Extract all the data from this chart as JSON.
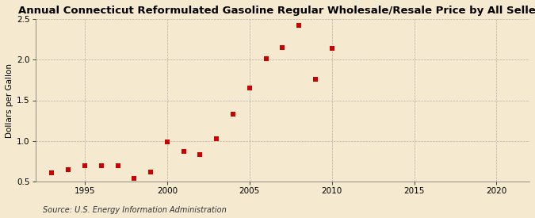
{
  "title": "Annual Connecticut Reformulated Gasoline Regular Wholesale/Resale Price by All Sellers",
  "ylabel": "Dollars per Gallon",
  "source_text": "Source: U.S. Energy Information Administration",
  "background_color": "#f5ead0",
  "data_points": [
    [
      1993,
      0.61
    ],
    [
      1994,
      0.65
    ],
    [
      1995,
      0.7
    ],
    [
      1996,
      0.7
    ],
    [
      1997,
      0.7
    ],
    [
      1998,
      0.54
    ],
    [
      1999,
      0.62
    ],
    [
      2000,
      0.99
    ],
    [
      2001,
      0.87
    ],
    [
      2002,
      0.83
    ],
    [
      2003,
      1.03
    ],
    [
      2004,
      1.33
    ],
    [
      2005,
      1.65
    ],
    [
      2006,
      2.01
    ],
    [
      2007,
      2.15
    ],
    [
      2008,
      2.42
    ],
    [
      2009,
      1.76
    ],
    [
      2010,
      2.14
    ]
  ],
  "marker_color": "#cc0000",
  "marker_size": 4,
  "xlim": [
    1992,
    2022
  ],
  "ylim": [
    0.5,
    2.5
  ],
  "xticks": [
    1995,
    2000,
    2005,
    2010,
    2015,
    2020
  ],
  "yticks": [
    0.5,
    1.0,
    1.5,
    2.0,
    2.5
  ],
  "grid_color": "#999999",
  "title_fontsize": 9.5,
  "axis_fontsize": 7.5,
  "source_fontsize": 7.0
}
